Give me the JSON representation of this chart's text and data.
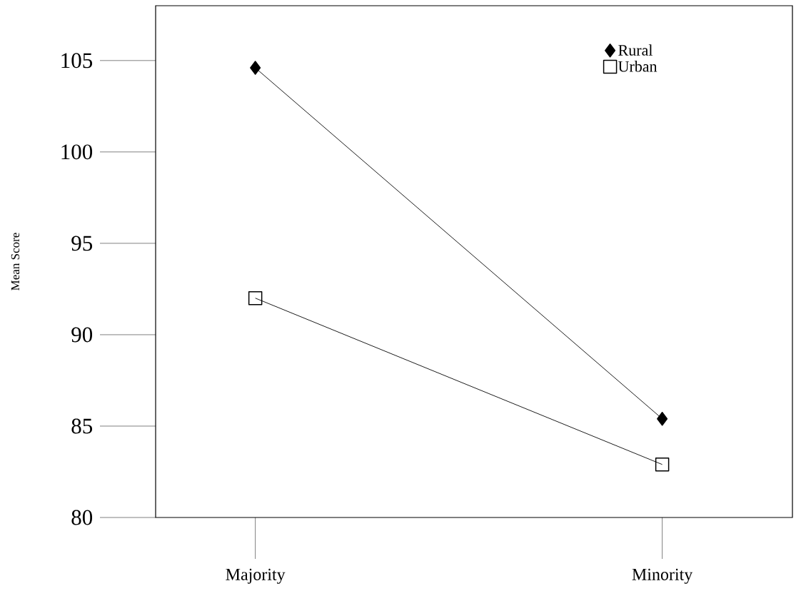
{
  "chart_data": {
    "type": "line",
    "ylabel": "Mean Score",
    "categories": [
      "Majority",
      "Minority"
    ],
    "series": [
      {
        "name": "Rural",
        "color": "#000000",
        "marker": "diamond",
        "values": [
          104.6,
          85.4
        ]
      },
      {
        "name": "Urban",
        "color": "#000000",
        "marker": "square",
        "values": [
          92.0,
          82.9
        ]
      }
    ],
    "ylim": [
      80,
      108
    ],
    "yticks": [
      80,
      85,
      90,
      95,
      100,
      105
    ],
    "legend": "top right",
    "grid": false,
    "line_style": "solid"
  }
}
